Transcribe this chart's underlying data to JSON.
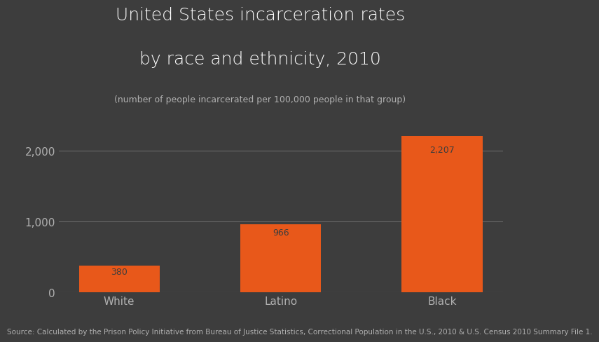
{
  "categories": [
    "White",
    "Latino",
    "Black"
  ],
  "values": [
    380,
    966,
    2207
  ],
  "bar_color": "#E8581A",
  "background_color": "#3d3d3d",
  "text_color": "#ffffff",
  "axis_text_color": "#b0b0b0",
  "title_line1": "United States incarceration rates",
  "title_line2": "by race and ethnicity, 2010",
  "subtitle": "(number of people incarcerated per 100,000 people in that group)",
  "source": "Source: Calculated by the Prison Policy Initiative from Bureau of Justice Statistics, Correctional Population in the U.S., 2010 & U.S. Census 2010 Summary File 1.",
  "yticks": [
    0,
    1000,
    2000
  ],
  "ytick_labels": [
    "0",
    "1,000",
    "2,000"
  ],
  "ylim": [
    0,
    2600
  ],
  "value_labels": [
    "380",
    "966",
    "2,207"
  ],
  "title_fontsize": 18,
  "subtitle_fontsize": 9,
  "tick_fontsize": 11,
  "source_fontsize": 7.5,
  "value_label_fontsize": 9,
  "bar_width": 0.5
}
